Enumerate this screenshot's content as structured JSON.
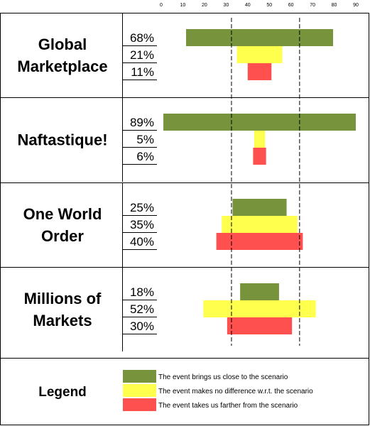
{
  "chart_data": {
    "type": "bar",
    "subtype": "centered-horizontal-bars (tornado)",
    "x_axis": {
      "range": [
        0,
        90
      ],
      "ticks": [
        0,
        10,
        20,
        30,
        40,
        50,
        60,
        70,
        80,
        90
      ]
    },
    "reference_lines": [
      32.5,
      64
    ],
    "series": [
      {
        "key": "closer",
        "color": "#77933c"
      },
      {
        "key": "no_diff",
        "color": "#ffff4d"
      },
      {
        "key": "farther",
        "color": "#ff5050"
      }
    ],
    "scenarios": [
      {
        "title_lines": [
          "Global",
          "Marketplace"
        ],
        "values": [
          68,
          21,
          11
        ],
        "labels": [
          "68%",
          "21%",
          "11%"
        ]
      },
      {
        "title_lines": [
          "Naftastique!"
        ],
        "values": [
          89,
          5,
          6
        ],
        "labels": [
          "89%",
          "5%",
          "6%"
        ]
      },
      {
        "title_lines": [
          "One World",
          "Order"
        ],
        "values": [
          25,
          35,
          40
        ],
        "labels": [
          "25%",
          "35%",
          "40%"
        ]
      },
      {
        "title_lines": [
          "Millions of",
          "Markets"
        ],
        "values": [
          18,
          52,
          30
        ],
        "labels": [
          "18%",
          "52%",
          "30%"
        ]
      }
    ],
    "legend": {
      "title": "Legend",
      "items": [
        {
          "color": "#77933c",
          "label": "The event brings us close to the scenario"
        },
        {
          "color": "#ffff4d",
          "label": "The event makes no difference w.r.t. the scenario"
        },
        {
          "color": "#ff5050",
          "label": "The event takes us farther from the scenario"
        }
      ]
    }
  }
}
